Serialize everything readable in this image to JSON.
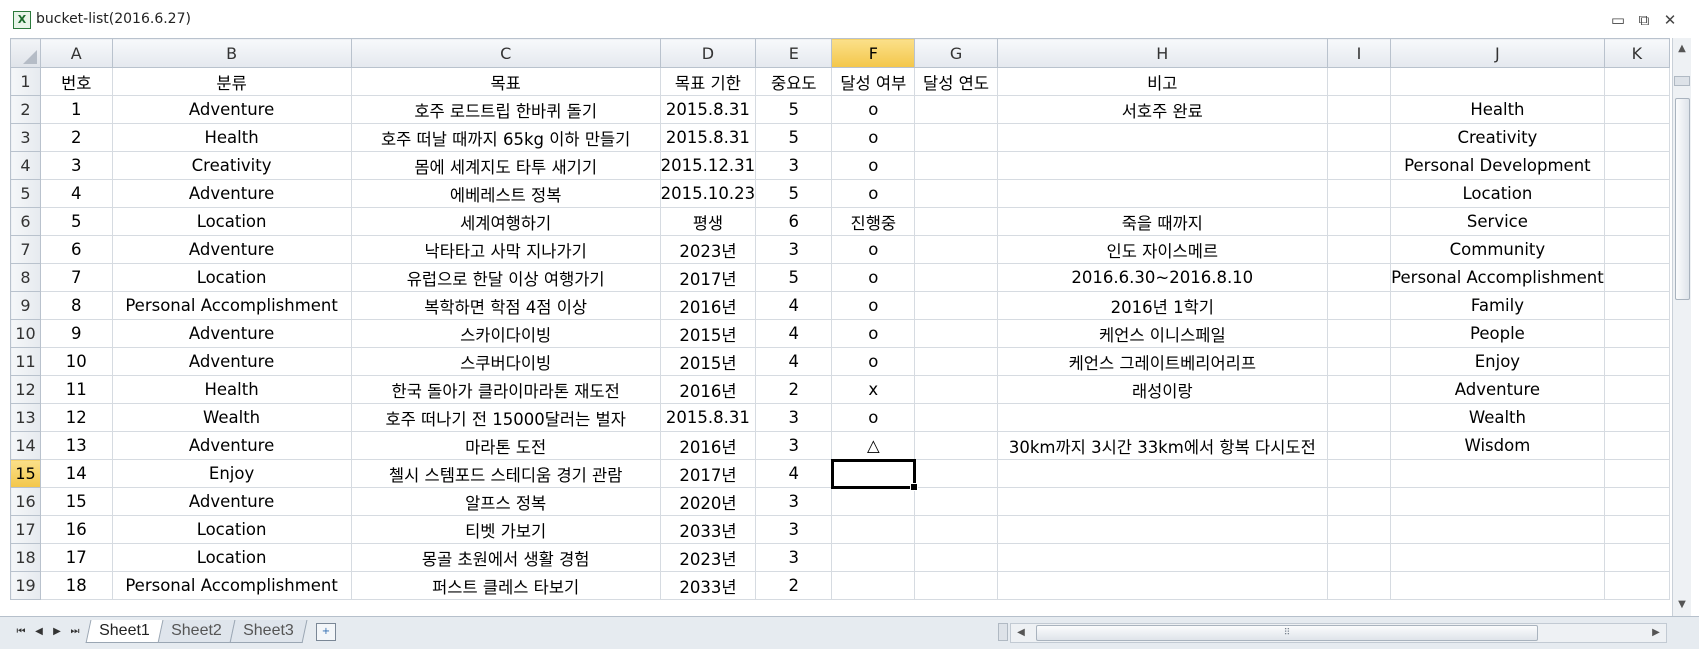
{
  "window": {
    "title": "bucket-list(2016.6.27)",
    "app_icon_glyph": "X",
    "minimize_glyph": "▭",
    "restore_glyph": "⧉",
    "close_glyph": "✕"
  },
  "grid": {
    "column_letters": [
      "A",
      "B",
      "C",
      "D",
      "E",
      "F",
      "G",
      "H",
      "I",
      "J",
      "K"
    ],
    "selected_column": "F",
    "selected_row": "15",
    "active_cell": "F15",
    "rows": [
      {
        "n": "1",
        "cells": [
          "번호",
          "분류",
          "목표",
          "목표 기한",
          "중요도",
          "달성 여부",
          "달성 연도",
          "비고",
          "",
          "",
          ""
        ]
      },
      {
        "n": "2",
        "cells": [
          "1",
          "Adventure",
          "호주 로드트립 한바퀴 돌기",
          "2015.8.31",
          "5",
          "o",
          "",
          "서호주 완료",
          "",
          "Health",
          ""
        ]
      },
      {
        "n": "3",
        "cells": [
          "2",
          "Health",
          "호주 떠날 때까지 65kg 이하 만들기",
          "2015.8.31",
          "5",
          "o",
          "",
          "",
          "",
          "Creativity",
          ""
        ]
      },
      {
        "n": "4",
        "cells": [
          "3",
          "Creativity",
          "몸에 세계지도 타투 새기기",
          "2015.12.31",
          "3",
          "o",
          "",
          "",
          "",
          "Personal Development",
          ""
        ]
      },
      {
        "n": "5",
        "cells": [
          "4",
          "Adventure",
          "에베레스트 정복",
          "2015.10.23",
          "5",
          "o",
          "",
          "",
          "",
          "Location",
          ""
        ]
      },
      {
        "n": "6",
        "cells": [
          "5",
          "Location",
          "세계여행하기",
          "평생",
          "6",
          "진행중",
          "",
          "죽을 때까지",
          "",
          "Service",
          ""
        ]
      },
      {
        "n": "7",
        "cells": [
          "6",
          "Adventure",
          "낙타타고 사막 지나가기",
          "2023년",
          "3",
          "o",
          "",
          "인도 자이스메르",
          "",
          "Community",
          ""
        ]
      },
      {
        "n": "8",
        "cells": [
          "7",
          "Location",
          "유럽으로 한달 이상 여행가기",
          "2017년",
          "5",
          "o",
          "",
          "2016.6.30~2016.8.10",
          "",
          "Personal Accomplishment",
          ""
        ]
      },
      {
        "n": "9",
        "cells": [
          "8",
          "Personal Accomplishment",
          "복학하면 학점 4점 이상",
          "2016년",
          "4",
          "o",
          "",
          "2016년 1학기",
          "",
          "Family",
          ""
        ]
      },
      {
        "n": "10",
        "cells": [
          "9",
          "Adventure",
          "스카이다이빙",
          "2015년",
          "4",
          "o",
          "",
          "케언스 이니스페일",
          "",
          "People",
          ""
        ]
      },
      {
        "n": "11",
        "cells": [
          "10",
          "Adventure",
          "스쿠버다이빙",
          "2015년",
          "4",
          "o",
          "",
          "케언스 그레이트베리어리프",
          "",
          "Enjoy",
          ""
        ]
      },
      {
        "n": "12",
        "cells": [
          "11",
          "Health",
          "한국 돌아가 클라이마라톤 재도전",
          "2016년",
          "2",
          "x",
          "",
          "래성이랑",
          "",
          "Adventure",
          ""
        ]
      },
      {
        "n": "13",
        "cells": [
          "12",
          "Wealth",
          "호주 떠나기 전 15000달러는 벌자",
          "2015.8.31",
          "3",
          "o",
          "",
          "",
          "",
          "Wealth",
          ""
        ]
      },
      {
        "n": "14",
        "cells": [
          "13",
          "Adventure",
          "마라톤 도전",
          "2016년",
          "3",
          "△",
          "",
          "30km까지 3시간 33km에서 항복 다시도전",
          "",
          "Wisdom",
          ""
        ]
      },
      {
        "n": "15",
        "cells": [
          "14",
          "Enjoy",
          "첼시 스템포드 스테디움 경기 관람",
          "2017년",
          "4",
          "",
          "",
          "",
          "",
          "",
          ""
        ]
      },
      {
        "n": "16",
        "cells": [
          "15",
          "Adventure",
          "알프스 정복",
          "2020년",
          "3",
          "",
          "",
          "",
          "",
          "",
          ""
        ]
      },
      {
        "n": "17",
        "cells": [
          "16",
          "Location",
          "티벳 가보기",
          "2033년",
          "3",
          "",
          "",
          "",
          "",
          "",
          ""
        ]
      },
      {
        "n": "18",
        "cells": [
          "17",
          "Location",
          "몽골 초원에서 생활 경험",
          "2023년",
          "3",
          "",
          "",
          "",
          "",
          "",
          ""
        ]
      },
      {
        "n": "19",
        "cells": [
          "18",
          "Personal Accomplishment",
          "퍼스트 클레스 타보기",
          "2033년",
          "2",
          "",
          "",
          "",
          "",
          "",
          ""
        ]
      }
    ]
  },
  "sheet_tabs": [
    "Sheet1",
    "Sheet2",
    "Sheet3"
  ],
  "active_sheet": "Sheet1",
  "nav": {
    "first": "⏮",
    "prev": "◀",
    "next": "▶",
    "last": "⏭"
  },
  "scroll": {
    "up": "▲",
    "down": "▼",
    "left": "◀",
    "right": "▶",
    "grip": "⠿"
  },
  "colors": {
    "selected_header": "#f3c64a",
    "grid_line": "#d6dbe1",
    "header_bg": "#e4e8ee"
  }
}
